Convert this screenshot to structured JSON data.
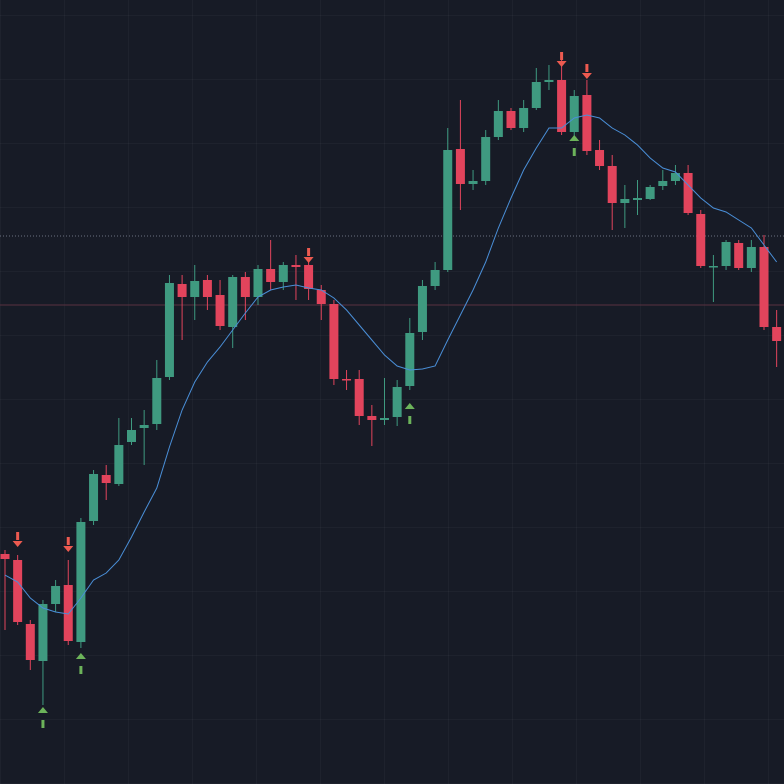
{
  "chart_data": {
    "type": "candlestick",
    "ylim": [
      0,
      784
    ],
    "up_color": "#3f9a80",
    "down_color": "#e2445c",
    "ma_color": "#4a8fd8",
    "buy_color": "#6cb35a",
    "sell_color": "#ec5a50",
    "open": [
      230,
      224,
      160,
      123,
      180,
      199,
      142,
      263,
      309,
      300,
      342,
      356,
      360,
      407,
      500,
      487,
      504,
      489,
      457,
      507,
      487,
      515,
      502,
      519,
      519,
      494,
      480,
      405,
      405,
      368,
      364,
      367,
      398,
      452,
      498,
      514,
      635,
      600,
      603,
      647,
      673,
      656,
      676,
      702,
      704,
      652,
      689,
      634,
      618,
      581,
      584,
      585,
      598,
      603,
      611,
      570,
      518,
      518,
      541,
      516,
      537,
      457
    ],
    "high": [
      234,
      229,
      164,
      184,
      204,
      224,
      266,
      314,
      319,
      366,
      366,
      374,
      424,
      509,
      509,
      519,
      509,
      504,
      509,
      512,
      519,
      544,
      522,
      529,
      524,
      499,
      484,
      414,
      414,
      379,
      406,
      404,
      466,
      504,
      522,
      656,
      684,
      614,
      654,
      684,
      676,
      684,
      716,
      719,
      724,
      694,
      704,
      644,
      629,
      599,
      604,
      599,
      614,
      619,
      619,
      574,
      529,
      544,
      544,
      544,
      549,
      474
    ],
    "low": [
      154,
      159,
      114,
      79,
      172,
      139,
      136,
      259,
      284,
      298,
      339,
      319,
      354,
      404,
      444,
      464,
      474,
      454,
      436,
      464,
      479,
      494,
      494,
      484,
      484,
      464,
      399,
      394,
      359,
      338,
      359,
      358,
      394,
      444,
      494,
      512,
      574,
      594,
      599,
      644,
      654,
      652,
      674,
      694,
      649,
      644,
      629,
      614,
      554,
      556,
      569,
      584,
      594,
      599,
      569,
      516,
      482,
      514,
      514,
      512,
      454,
      417
    ],
    "close": [
      225,
      162,
      124,
      180,
      198,
      143,
      262,
      310,
      301,
      339,
      354,
      359,
      406,
      501,
      487,
      503,
      487,
      458,
      507,
      487,
      515,
      502,
      519,
      517,
      495,
      480,
      405,
      404,
      368,
      364,
      366,
      397,
      451,
      498,
      514,
      634,
      600,
      603,
      647,
      673,
      656,
      676,
      702,
      704,
      652,
      688,
      633,
      618,
      581,
      585,
      586,
      597,
      603,
      611,
      571,
      518,
      518,
      542,
      516,
      537,
      457,
      443
    ],
    "ma": [
      209,
      202,
      186,
      176,
      172,
      170,
      186,
      204,
      211,
      224,
      247,
      272,
      296,
      337,
      374,
      402,
      422,
      437,
      454,
      471,
      487,
      494,
      497,
      499,
      496,
      494,
      486,
      474,
      459,
      444,
      429,
      418,
      414,
      415,
      418,
      444,
      469,
      494,
      522,
      556,
      586,
      614,
      636,
      656,
      656,
      666,
      669,
      666,
      656,
      649,
      639,
      626,
      616,
      612,
      599,
      586,
      576,
      572,
      564,
      556,
      539,
      522
    ],
    "sell": [
      null,
      244,
      null,
      null,
      null,
      239,
      null,
      null,
      null,
      null,
      null,
      null,
      null,
      null,
      null,
      null,
      null,
      null,
      null,
      null,
      null,
      null,
      null,
      null,
      528,
      null,
      null,
      null,
      null,
      null,
      null,
      null,
      null,
      null,
      null,
      null,
      null,
      null,
      null,
      null,
      null,
      null,
      null,
      null,
      724,
      null,
      712,
      null,
      null,
      null,
      null,
      null,
      null,
      null,
      null,
      null,
      null,
      null,
      null,
      null,
      null,
      null
    ],
    "buy": [
      null,
      null,
      null,
      70,
      null,
      null,
      124,
      null,
      null,
      null,
      null,
      null,
      null,
      null,
      null,
      null,
      null,
      null,
      null,
      null,
      null,
      null,
      null,
      null,
      null,
      null,
      null,
      null,
      null,
      null,
      null,
      null,
      374,
      null,
      null,
      null,
      null,
      null,
      null,
      null,
      null,
      null,
      null,
      null,
      null,
      642,
      null,
      null,
      null,
      null,
      null,
      null,
      null,
      null,
      null,
      null,
      null,
      null,
      null,
      null,
      null,
      null
    ],
    "hlines": [
      {
        "value": 548,
        "color": "#6b7080",
        "dash": "1 2"
      },
      {
        "value": 479,
        "color": "#5a3040",
        "dash": "none"
      }
    ]
  }
}
